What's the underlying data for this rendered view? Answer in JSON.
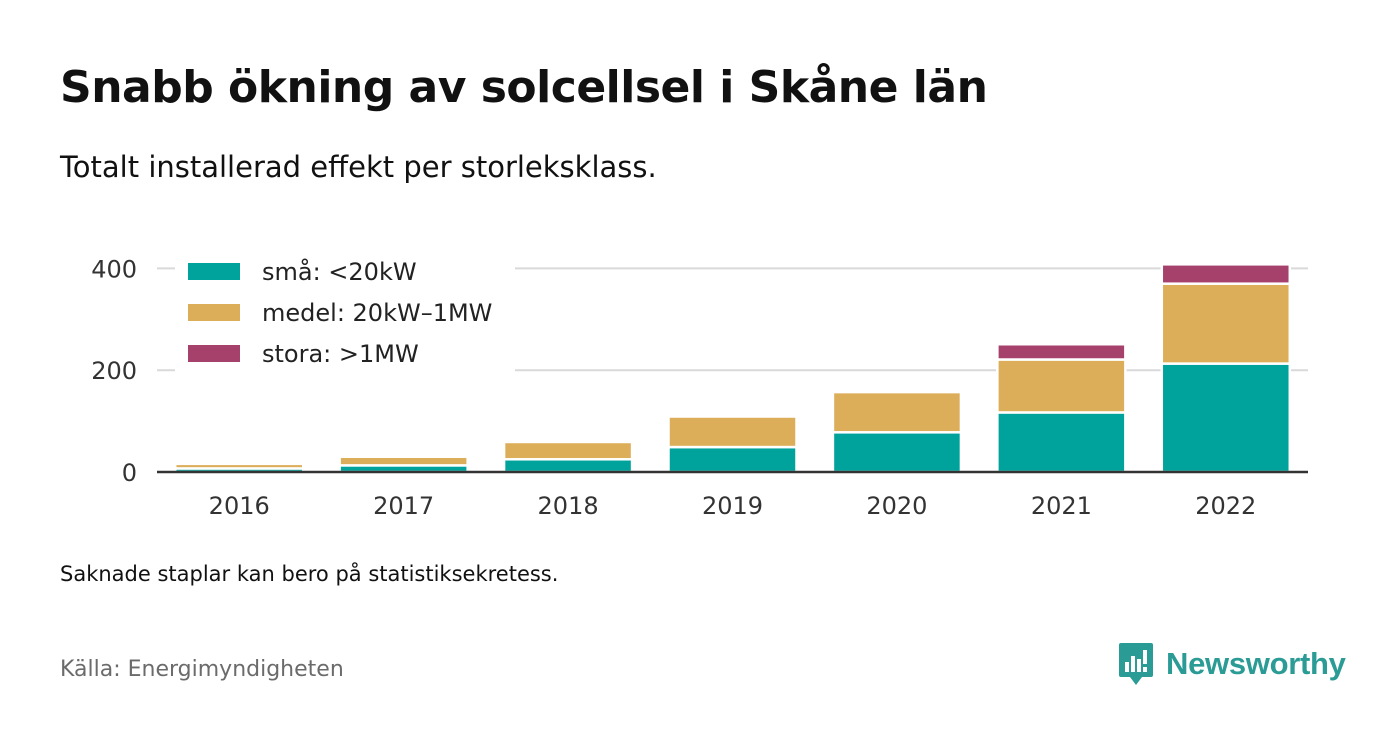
{
  "header": {
    "title": "Snabb ökning av solcellsel i Skåne län",
    "subtitle": "Totalt installerad effekt per storleksklass."
  },
  "chart_data": {
    "type": "bar",
    "stacked": true,
    "categories": [
      "2016",
      "2017",
      "2018",
      "2019",
      "2020",
      "2021",
      "2022"
    ],
    "series": [
      {
        "name": "små: <20kW",
        "color": "#00a39b",
        "values": [
          7,
          13,
          25,
          49,
          78,
          117,
          213
        ]
      },
      {
        "name": "medel: 20kW–1MW",
        "color": "#dcae5a",
        "values": [
          9,
          17,
          34,
          60,
          79,
          104,
          157
        ]
      },
      {
        "name": "stora: >1MW",
        "color": "#a5416a",
        "values": [
          0,
          0,
          0,
          0,
          0,
          30,
          38
        ]
      }
    ],
    "y_ticks": [
      "0",
      "200",
      "400"
    ],
    "ylim": [
      0,
      420
    ],
    "grid": true,
    "legend_position": "top-left"
  },
  "footer": {
    "note": "Saknade staplar kan bero på statistiksekretess.",
    "source": "Källa: Energimyndigheten",
    "brand": "Newsworthy"
  },
  "colors": {
    "brand": "#2b9b95",
    "grid": "#d9d9d9",
    "axis": "#333333"
  }
}
